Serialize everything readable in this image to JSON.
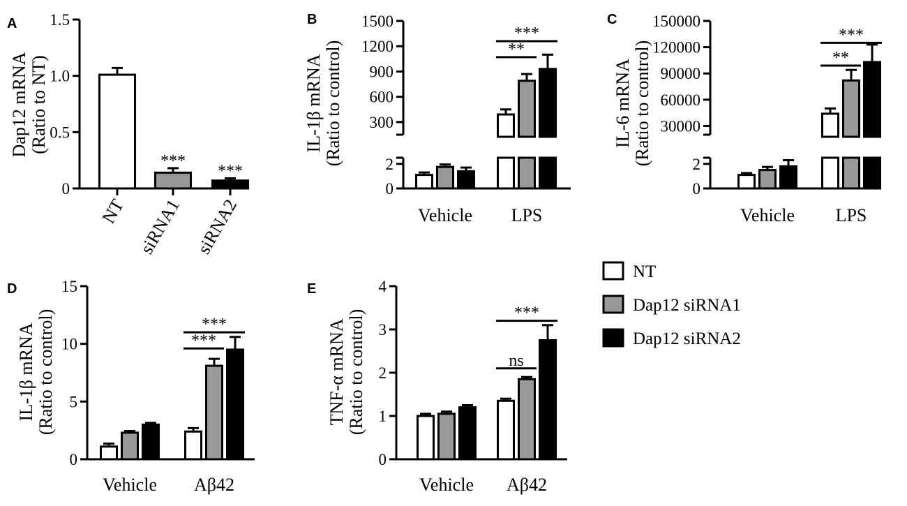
{
  "chart_data": [
    {
      "panel": "A",
      "type": "bar",
      "ylabel_lines": [
        "Dap12 mRNA",
        "(Ratio to NT)"
      ],
      "yticks": [
        "0",
        "0.5",
        "1.0",
        "1.5"
      ],
      "ylim": [
        0,
        1.5
      ],
      "categories": [
        "NT",
        "siRNA1",
        "siRNA2"
      ],
      "values": [
        1.01,
        0.14,
        0.07
      ],
      "errors": [
        0.06,
        0.04,
        0.02
      ],
      "fills": [
        "#ffffff",
        "#999999",
        "#000000"
      ],
      "annotations": [
        "",
        "***",
        "***"
      ]
    },
    {
      "panel": "B",
      "type": "bar",
      "ylabel_lines": [
        "IL-1β mRNA",
        "(Ratio to control)"
      ],
      "yticks_lower": [
        "0",
        "2"
      ],
      "yticks_upper": [
        "300",
        "600",
        "900",
        "1200",
        "1500"
      ],
      "ylim_lower": [
        0,
        2.5
      ],
      "ylim_upper": [
        150,
        1500
      ],
      "categories": [
        "Vehicle",
        "LPS"
      ],
      "series": [
        {
          "name": "NT",
          "values": [
            1.1,
            390
          ],
          "errors": [
            0.2,
            60
          ]
        },
        {
          "name": "Dap12 siRNA1",
          "values": [
            1.75,
            790
          ],
          "errors": [
            0.2,
            80
          ]
        },
        {
          "name": "Dap12 siRNA2",
          "values": [
            1.4,
            930
          ],
          "errors": [
            0.3,
            170
          ]
        }
      ],
      "significance": [
        {
          "label": "**",
          "from": 0,
          "to": 1,
          "level": 1070
        },
        {
          "label": "***",
          "from": 0,
          "to": 2,
          "level": 1260
        }
      ]
    },
    {
      "panel": "C",
      "type": "bar",
      "ylabel_lines": [
        "IL-6 mRNA",
        "(Ratio to control)"
      ],
      "yticks_lower": [
        "0",
        "2"
      ],
      "yticks_upper": [
        "30000",
        "60000",
        "90000",
        "120000",
        "150000"
      ],
      "ylim_lower": [
        0,
        2.5
      ],
      "ylim_upper": [
        20000,
        150000
      ],
      "categories": [
        "Vehicle",
        "LPS"
      ],
      "series": [
        {
          "name": "NT",
          "values": [
            1.1,
            44000
          ],
          "errors": [
            0.15,
            6000
          ]
        },
        {
          "name": "Dap12 siRNA1",
          "values": [
            1.5,
            82000
          ],
          "errors": [
            0.25,
            12000
          ]
        },
        {
          "name": "Dap12 siRNA2",
          "values": [
            1.8,
            103000
          ],
          "errors": [
            0.5,
            20000
          ]
        }
      ],
      "significance": [
        {
          "label": "**",
          "from": 0,
          "to": 1,
          "level": 99000
        },
        {
          "label": "***",
          "from": 0,
          "to": 2,
          "level": 125000
        }
      ]
    },
    {
      "panel": "D",
      "type": "bar",
      "ylabel_lines": [
        "IL-1β mRNA",
        "(Ratio to control)"
      ],
      "yticks": [
        "0",
        "5",
        "10",
        "15"
      ],
      "ylim": [
        0,
        15
      ],
      "categories": [
        "Vehicle",
        "Aβ42"
      ],
      "series": [
        {
          "name": "NT",
          "values": [
            1.1,
            2.4
          ],
          "errors": [
            0.25,
            0.3
          ]
        },
        {
          "name": "Dap12 siRNA1",
          "values": [
            2.3,
            8.1
          ],
          "errors": [
            0.15,
            0.6
          ]
        },
        {
          "name": "Dap12 siRNA2",
          "values": [
            3.0,
            9.5
          ],
          "errors": [
            0.15,
            1.1
          ]
        }
      ],
      "significance": [
        {
          "label": "***",
          "from": 0,
          "to": 1,
          "level": 9.6
        },
        {
          "label": "***",
          "from": 0,
          "to": 2,
          "level": 11.0
        }
      ]
    },
    {
      "panel": "E",
      "type": "bar",
      "ylabel_lines": [
        "TNF-α mRNA",
        "(Ratio to control)"
      ],
      "yticks": [
        "0",
        "1",
        "2",
        "3",
        "4"
      ],
      "ylim": [
        0,
        4
      ],
      "categories": [
        "Vehicle",
        "Aβ42"
      ],
      "series": [
        {
          "name": "NT",
          "values": [
            1.0,
            1.35
          ],
          "errors": [
            0.05,
            0.05
          ]
        },
        {
          "name": "Dap12 siRNA1",
          "values": [
            1.05,
            1.85
          ],
          "errors": [
            0.05,
            0.05
          ]
        },
        {
          "name": "Dap12 siRNA2",
          "values": [
            1.2,
            2.75
          ],
          "errors": [
            0.05,
            0.35
          ]
        }
      ],
      "significance": [
        {
          "label": "ns",
          "from": 0,
          "to": 1,
          "level": 2.1
        },
        {
          "label": "***",
          "from": 0,
          "to": 2,
          "level": 3.2
        }
      ]
    }
  ],
  "legend": {
    "items": [
      {
        "label": "NT",
        "color": "#ffffff"
      },
      {
        "label": "Dap12 siRNA1",
        "color": "#999999"
      },
      {
        "label": "Dap12 siRNA2",
        "color": "#000000"
      }
    ]
  }
}
